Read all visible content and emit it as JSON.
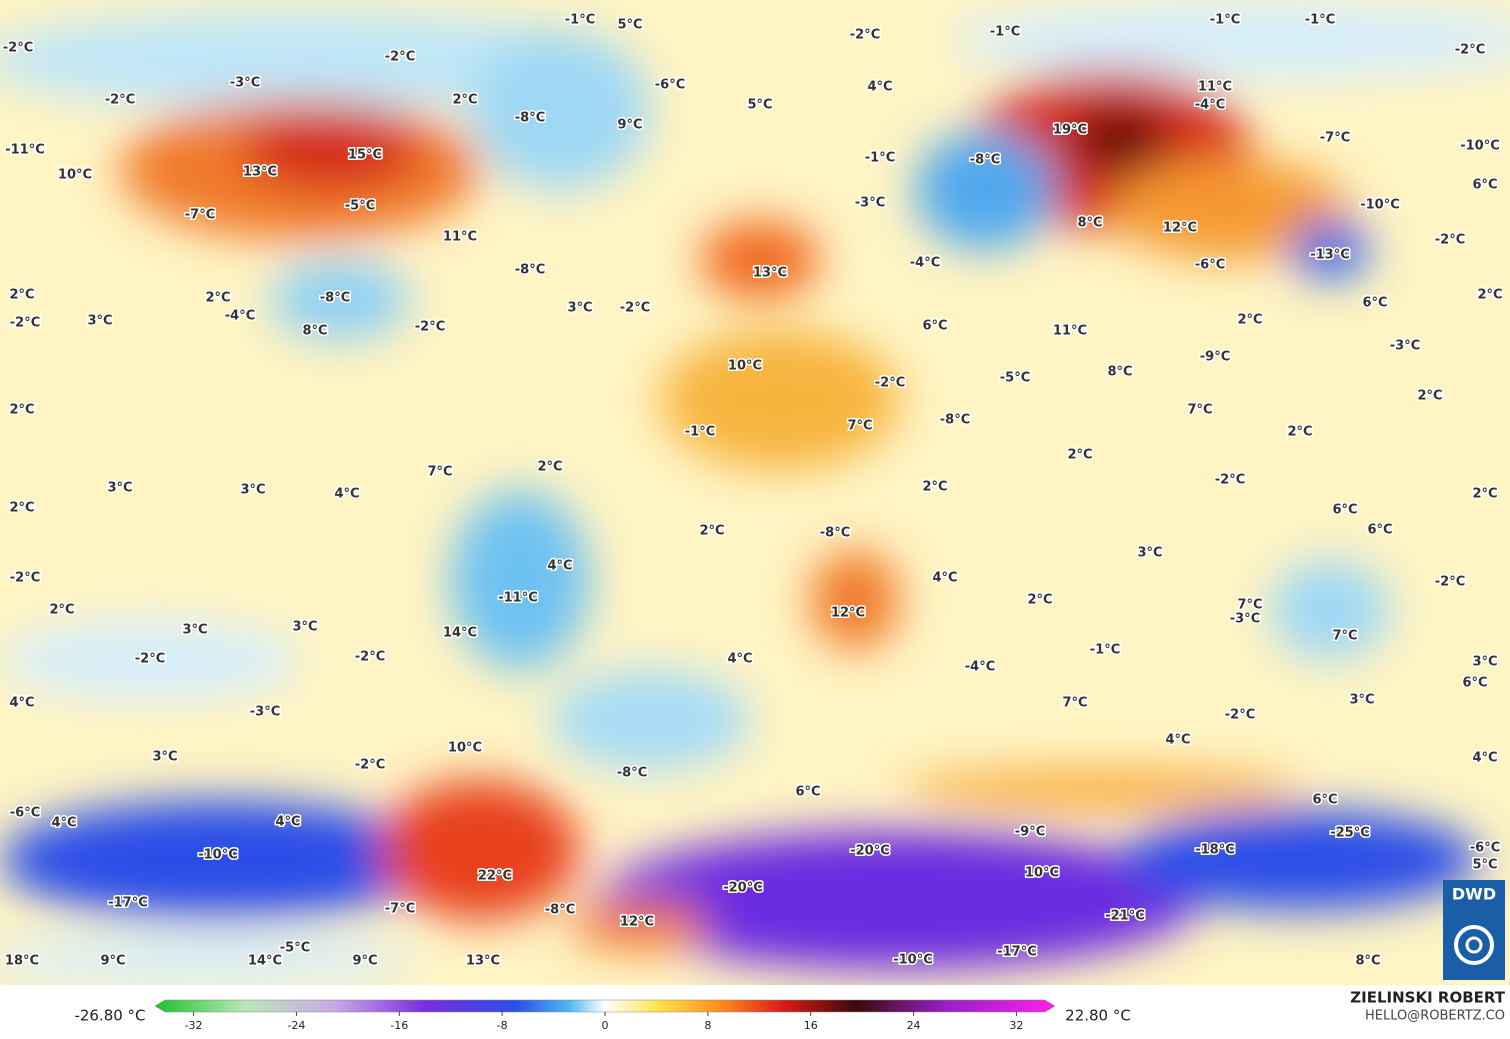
{
  "map": {
    "temperature_labels": [
      "-2°C",
      "-1°C",
      "5°C",
      "-2°C",
      "-1°C",
      "-1°C",
      "-1°C",
      "-2°C",
      "-2°C",
      "-3°C",
      "-2°C",
      "2°C",
      "-6°C",
      "5°C",
      "4°C",
      "11°C",
      "-4°C",
      "-8°C",
      "9°C",
      "-11°C",
      "15°C",
      "13°C",
      "10°C",
      "19°C",
      "-7°C",
      "-10°C",
      "-1°C",
      "-8°C",
      "6°C",
      "-5°C",
      "-7°C",
      "-3°C",
      "-10°C",
      "11°C",
      "8°C",
      "12°C",
      "-2°C",
      "-8°C",
      "13°C",
      "-4°C",
      "-6°C",
      "-13°C",
      "2°C",
      "2°C",
      "-8°C",
      "3°C",
      "-2°C",
      "2°C",
      "6°C",
      "-2°C",
      "3°C",
      "-4°C",
      "8°C",
      "-2°C",
      "6°C",
      "2°C",
      "11°C",
      "-3°C",
      "-9°C",
      "10°C",
      "-5°C",
      "8°C",
      "-2°C",
      "2°C",
      "2°C",
      "7°C",
      "-8°C",
      "7°C",
      "2°C",
      "-1°C",
      "2°C",
      "7°C",
      "2°C",
      "-2°C",
      "3°C",
      "3°C",
      "4°C",
      "2°C",
      "2°C",
      "2°C",
      "2°C",
      "6°C",
      "6°C",
      "-8°C",
      "3°C",
      "4°C",
      "4°C",
      "-2°C",
      "-2°C",
      "-11°C",
      "2°C",
      "2°C",
      "7°C",
      "-3°C",
      "12°C",
      "3°C",
      "3°C",
      "14°C",
      "7°C",
      "-2°C",
      "-2°C",
      "4°C",
      "-1°C",
      "-4°C",
      "3°C",
      "6°C",
      "4°C",
      "7°C",
      "-3°C",
      "-2°C",
      "3°C",
      "10°C",
      "4°C",
      "3°C",
      "-2°C",
      "-8°C",
      "4°C",
      "6°C",
      "6°C",
      "-6°C",
      "4°C",
      "4°C",
      "-9°C",
      "-25°C",
      "-6°C",
      "-10°C",
      "-20°C",
      "-18°C",
      "5°C",
      "10°C",
      "22°C",
      "-20°C",
      "-17°C",
      "-7°C",
      "-8°C",
      "-21°C",
      "12°C",
      "-5°C",
      "-17°C",
      "18°C",
      "9°C",
      "14°C",
      "9°C",
      "13°C",
      "-10°C",
      "8°C"
    ],
    "colorbar": {
      "min_label": "-26.80 °C",
      "max_label": "22.80 °C",
      "lim": [
        -35,
        35
      ],
      "ticks": [
        -32,
        -24,
        -16,
        -8,
        0,
        8,
        16,
        24,
        32
      ]
    },
    "author": "ZIELINSKI ROBERT",
    "contact": "HELLO@ROBERTZ.CO",
    "logo": "DWD"
  }
}
